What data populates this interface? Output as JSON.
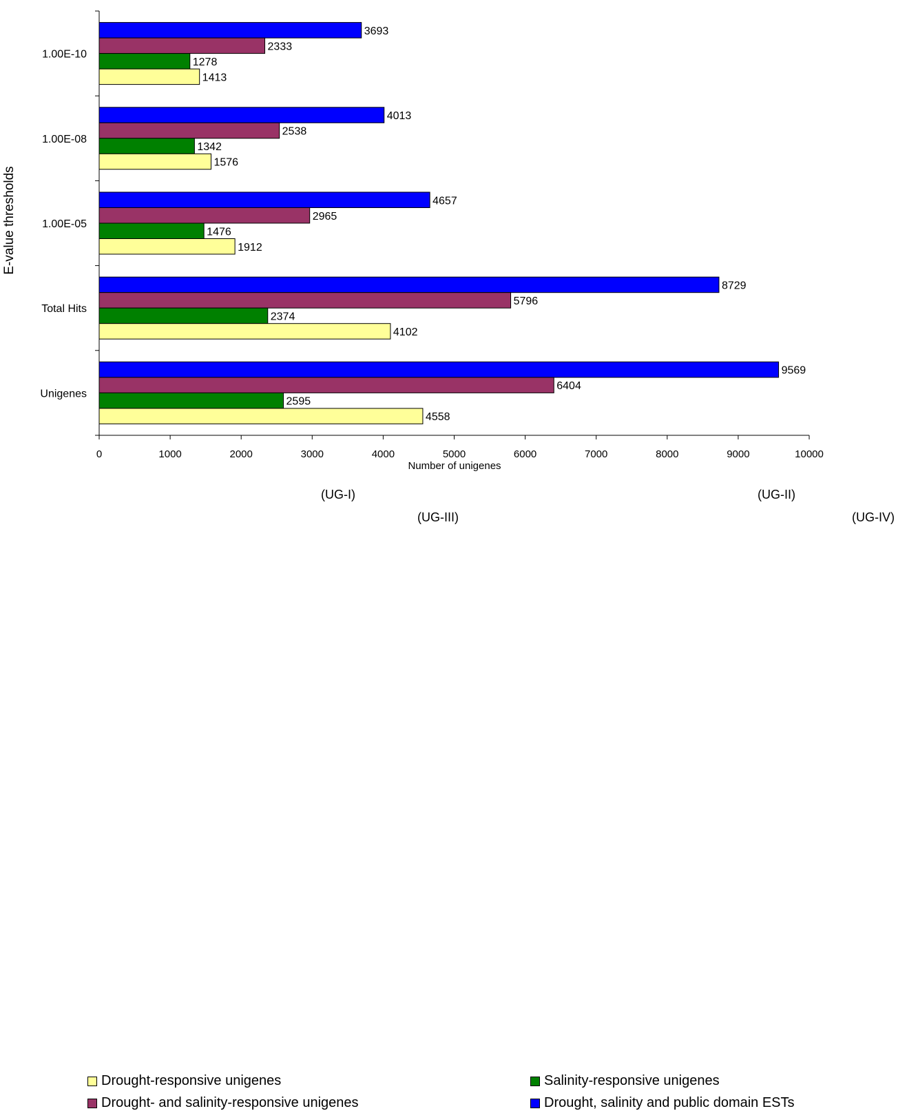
{
  "chart_data": {
    "type": "bar",
    "orientation": "horizontal",
    "title": "",
    "xlabel": "Number of unigenes",
    "ylabel": "E-value thresholds",
    "xlim": [
      0,
      10000
    ],
    "x_ticks": [
      "0",
      "1000",
      "2000",
      "3000",
      "4000",
      "5000",
      "6000",
      "7000",
      "8000",
      "9000",
      "10000"
    ],
    "x_tick_values": [
      0,
      1000,
      2000,
      3000,
      4000,
      5000,
      6000,
      7000,
      8000,
      9000,
      10000
    ],
    "grid": false,
    "legend_position": "bottom",
    "categories": [
      "Unigenes",
      "Total Hits",
      "1.00E-05",
      "1.00E-08",
      "1.00E-10"
    ],
    "series": [
      {
        "name": "Drought-responsive unigenes",
        "color": "#FFFF99",
        "values": [
          4558,
          4102,
          1912,
          1576,
          1413
        ]
      },
      {
        "name": "Salinity-responsive unigenes",
        "color": "#008000",
        "values": [
          2595,
          2374,
          1476,
          1342,
          1278
        ]
      },
      {
        "name": "Drought- and salinity-responsive unigenes",
        "color": "#993366",
        "values": [
          6404,
          5796,
          2965,
          2538,
          2333
        ]
      },
      {
        "name": "Drought, salinity and public domain ESTs",
        "color": "#0000FF",
        "values": [
          9569,
          8729,
          4657,
          4013,
          3693
        ]
      }
    ],
    "annotations": [
      "(UG-I)",
      "(UG-II)",
      "(UG-III)",
      "(UG-IV)"
    ]
  }
}
